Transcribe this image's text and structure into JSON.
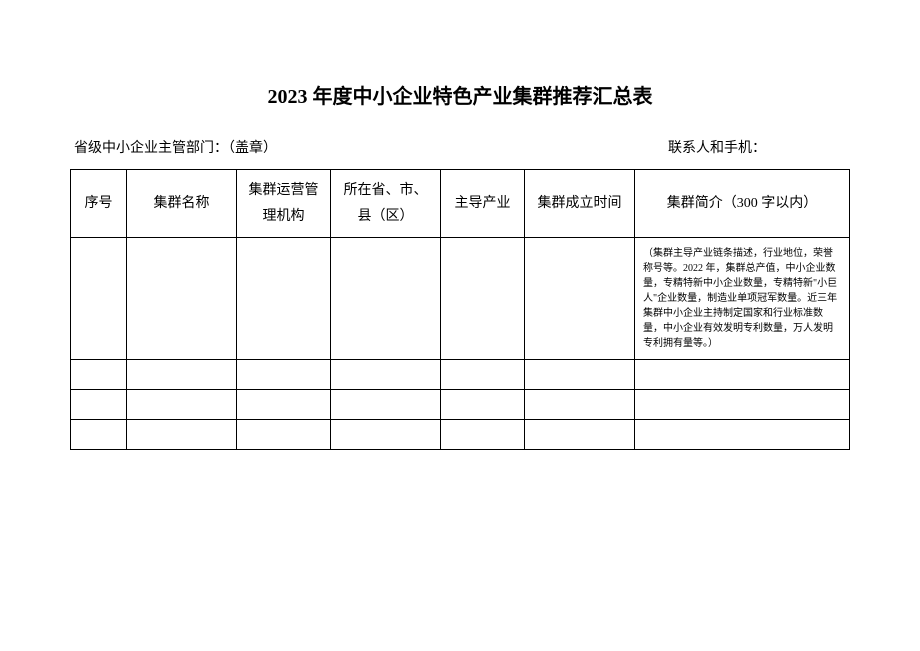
{
  "title": "2023 年度中小企业特色产业集群推荐汇总表",
  "header": {
    "left": "省级中小企业主管部门：（盖章）",
    "right": "联系人和手机："
  },
  "columns": {
    "seq": "序号",
    "name": "集群名称",
    "org": "集群运营管理机构",
    "loc": "所在省、市、县（区）",
    "industry": "主导产业",
    "date": "集群成立时间",
    "intro": "集群简介（300 字以内）"
  },
  "rows": [
    {
      "seq": "",
      "name": "",
      "org": "",
      "loc": "",
      "industry": "",
      "date": "",
      "intro": "（集群主导产业链条描述，行业地位，荣誉称号等。2022 年，集群总产值，中小企业数量，专精特新中小企业数量，专精特新\"小巨人\"企业数量，制造业单项冠军数量。近三年集群中小企业主持制定国家和行业标准数量，中小企业有效发明专利数量，万人发明专利拥有量等。）"
    },
    {
      "seq": "",
      "name": "",
      "org": "",
      "loc": "",
      "industry": "",
      "date": "",
      "intro": ""
    },
    {
      "seq": "",
      "name": "",
      "org": "",
      "loc": "",
      "industry": "",
      "date": "",
      "intro": ""
    },
    {
      "seq": "",
      "name": "",
      "org": "",
      "loc": "",
      "industry": "",
      "date": "",
      "intro": ""
    }
  ],
  "style": {
    "background_color": "#ffffff",
    "border_color": "#000000",
    "title_fontsize": 20,
    "header_fontsize": 14,
    "cell_fontsize": 14,
    "note_fontsize": 10
  }
}
